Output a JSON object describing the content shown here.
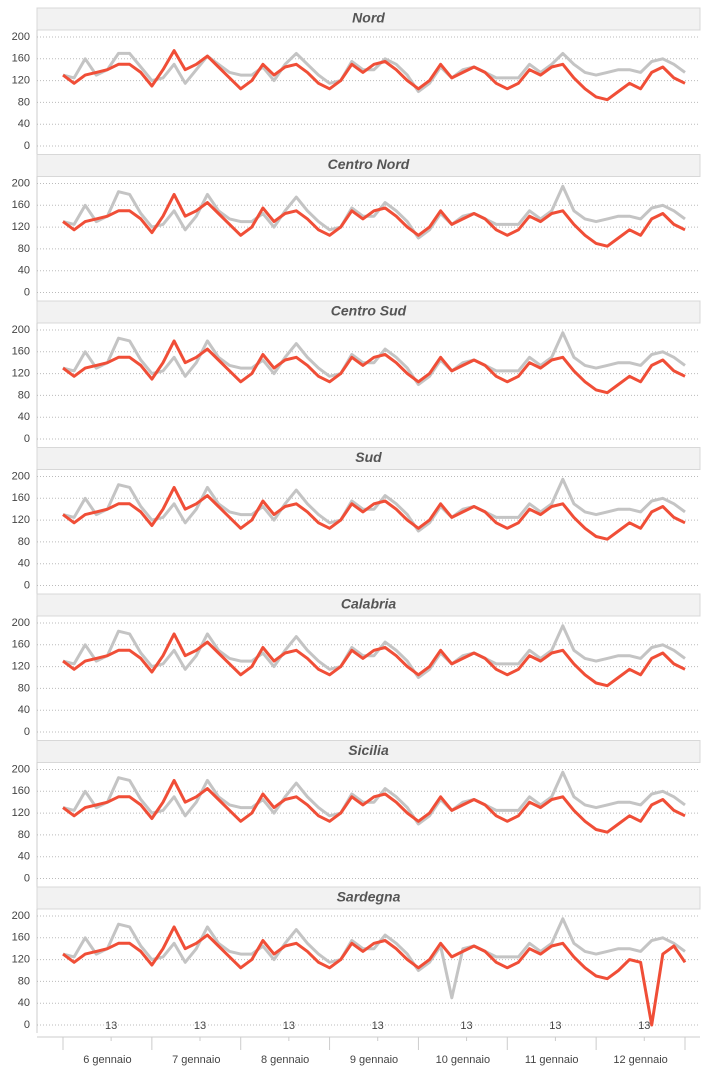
{
  "chart_data": [
    {
      "type": "line",
      "title": "Nord",
      "ylim": [
        0,
        200
      ],
      "yticks": [
        0,
        40,
        80,
        120,
        160,
        200
      ],
      "grid": true,
      "series": [
        {
          "color": "#c4c4c4",
          "values": [
            130,
            125,
            160,
            130,
            140,
            170,
            170,
            145,
            120,
            125,
            150,
            115,
            140,
            165,
            150,
            135,
            130,
            130,
            145,
            120,
            150,
            170,
            150,
            130,
            115,
            120,
            155,
            140,
            140,
            160,
            150,
            130,
            100,
            115,
            145,
            125,
            140,
            145,
            135,
            125,
            125,
            125,
            150,
            135,
            150,
            170,
            150,
            135,
            130,
            135,
            140,
            140,
            135,
            155,
            160,
            150,
            135
          ]
        },
        {
          "color": "#f04e37",
          "values": [
            130,
            115,
            130,
            135,
            140,
            150,
            150,
            135,
            110,
            140,
            175,
            140,
            150,
            165,
            145,
            125,
            105,
            120,
            150,
            130,
            145,
            150,
            135,
            115,
            105,
            120,
            150,
            135,
            150,
            155,
            140,
            120,
            105,
            120,
            150,
            125,
            135,
            145,
            135,
            115,
            105,
            115,
            140,
            130,
            145,
            150,
            125,
            105,
            90,
            85,
            100,
            115,
            105,
            135,
            145,
            125,
            115
          ]
        }
      ]
    },
    {
      "type": "line",
      "title": "Centro Nord",
      "ylim": [
        0,
        200
      ],
      "yticks": [
        0,
        40,
        80,
        120,
        160,
        200
      ],
      "grid": true,
      "series": [
        {
          "color": "#c4c4c4",
          "values": [
            130,
            125,
            160,
            130,
            140,
            185,
            180,
            145,
            120,
            125,
            150,
            115,
            140,
            180,
            150,
            135,
            130,
            130,
            145,
            120,
            150,
            175,
            150,
            130,
            115,
            120,
            155,
            140,
            140,
            165,
            150,
            130,
            100,
            115,
            145,
            125,
            140,
            145,
            135,
            125,
            125,
            125,
            150,
            135,
            150,
            195,
            150,
            135,
            130,
            135,
            140,
            140,
            135,
            155,
            160,
            150,
            135
          ]
        },
        {
          "color": "#f04e37",
          "values": [
            130,
            115,
            130,
            135,
            140,
            150,
            150,
            135,
            110,
            140,
            180,
            140,
            150,
            165,
            145,
            125,
            105,
            120,
            155,
            130,
            145,
            150,
            135,
            115,
            105,
            120,
            150,
            135,
            150,
            155,
            140,
            120,
            105,
            120,
            150,
            125,
            135,
            145,
            135,
            115,
            105,
            115,
            140,
            130,
            145,
            150,
            125,
            105,
            90,
            85,
            100,
            115,
            105,
            135,
            145,
            125,
            115
          ]
        }
      ]
    },
    {
      "type": "line",
      "title": "Centro Sud",
      "ylim": [
        0,
        200
      ],
      "yticks": [
        0,
        40,
        80,
        120,
        160,
        200
      ],
      "grid": true,
      "series": [
        {
          "color": "#c4c4c4",
          "values": [
            130,
            125,
            160,
            130,
            140,
            185,
            180,
            145,
            120,
            125,
            150,
            115,
            140,
            180,
            150,
            135,
            130,
            130,
            145,
            120,
            150,
            175,
            150,
            130,
            115,
            120,
            155,
            140,
            140,
            165,
            150,
            130,
            100,
            115,
            145,
            125,
            140,
            145,
            135,
            125,
            125,
            125,
            150,
            135,
            150,
            195,
            150,
            135,
            130,
            135,
            140,
            140,
            135,
            155,
            160,
            150,
            135
          ]
        },
        {
          "color": "#f04e37",
          "values": [
            130,
            115,
            130,
            135,
            140,
            150,
            150,
            135,
            110,
            140,
            180,
            140,
            150,
            165,
            145,
            125,
            105,
            120,
            155,
            130,
            145,
            150,
            135,
            115,
            105,
            120,
            150,
            135,
            150,
            155,
            140,
            120,
            105,
            120,
            150,
            125,
            135,
            145,
            135,
            115,
            105,
            115,
            140,
            130,
            145,
            150,
            125,
            105,
            90,
            85,
            100,
            115,
            105,
            135,
            145,
            125,
            115
          ]
        }
      ]
    },
    {
      "type": "line",
      "title": "Sud",
      "ylim": [
        0,
        200
      ],
      "yticks": [
        0,
        40,
        80,
        120,
        160,
        200
      ],
      "grid": true,
      "series": [
        {
          "color": "#c4c4c4",
          "values": [
            130,
            125,
            160,
            130,
            140,
            185,
            180,
            145,
            120,
            125,
            150,
            115,
            140,
            180,
            150,
            135,
            130,
            130,
            145,
            120,
            150,
            175,
            150,
            130,
            115,
            120,
            155,
            140,
            140,
            165,
            150,
            130,
            100,
            115,
            145,
            125,
            140,
            145,
            135,
            125,
            125,
            125,
            150,
            135,
            150,
            195,
            150,
            135,
            130,
            135,
            140,
            140,
            135,
            155,
            160,
            150,
            135
          ]
        },
        {
          "color": "#f04e37",
          "values": [
            130,
            115,
            130,
            135,
            140,
            150,
            150,
            135,
            110,
            140,
            180,
            140,
            150,
            165,
            145,
            125,
            105,
            120,
            155,
            130,
            145,
            150,
            135,
            115,
            105,
            120,
            150,
            135,
            150,
            155,
            140,
            120,
            105,
            120,
            150,
            125,
            135,
            145,
            135,
            115,
            105,
            115,
            140,
            130,
            145,
            150,
            125,
            105,
            90,
            85,
            100,
            115,
            105,
            135,
            145,
            125,
            115
          ]
        }
      ]
    },
    {
      "type": "line",
      "title": "Calabria",
      "ylim": [
        0,
        200
      ],
      "yticks": [
        0,
        40,
        80,
        120,
        160,
        200
      ],
      "grid": true,
      "series": [
        {
          "color": "#c4c4c4",
          "values": [
            130,
            125,
            160,
            130,
            140,
            185,
            180,
            145,
            120,
            125,
            150,
            115,
            140,
            180,
            150,
            135,
            130,
            130,
            145,
            120,
            150,
            175,
            150,
            130,
            115,
            120,
            155,
            140,
            140,
            165,
            150,
            130,
            100,
            115,
            145,
            125,
            140,
            145,
            135,
            125,
            125,
            125,
            150,
            135,
            150,
            195,
            150,
            135,
            130,
            135,
            140,
            140,
            135,
            155,
            160,
            150,
            135
          ]
        },
        {
          "color": "#f04e37",
          "values": [
            130,
            115,
            130,
            135,
            140,
            150,
            150,
            135,
            110,
            140,
            180,
            140,
            150,
            165,
            145,
            125,
            105,
            120,
            155,
            130,
            145,
            150,
            135,
            115,
            105,
            120,
            150,
            135,
            150,
            155,
            140,
            120,
            105,
            120,
            150,
            125,
            135,
            145,
            135,
            115,
            105,
            115,
            140,
            130,
            145,
            150,
            125,
            105,
            90,
            85,
            100,
            115,
            105,
            135,
            145,
            125,
            115
          ]
        }
      ]
    },
    {
      "type": "line",
      "title": "Sicilia",
      "ylim": [
        0,
        200
      ],
      "yticks": [
        0,
        40,
        80,
        120,
        160,
        200
      ],
      "grid": true,
      "series": [
        {
          "color": "#c4c4c4",
          "values": [
            130,
            125,
            160,
            130,
            140,
            185,
            180,
            145,
            120,
            125,
            150,
            115,
            140,
            180,
            150,
            135,
            130,
            130,
            145,
            120,
            150,
            175,
            150,
            130,
            115,
            120,
            155,
            140,
            140,
            165,
            150,
            130,
            100,
            115,
            145,
            125,
            140,
            145,
            135,
            125,
            125,
            125,
            150,
            135,
            150,
            195,
            150,
            135,
            130,
            135,
            140,
            140,
            135,
            155,
            160,
            150,
            135
          ]
        },
        {
          "color": "#f04e37",
          "values": [
            130,
            115,
            130,
            135,
            140,
            150,
            150,
            135,
            110,
            140,
            180,
            140,
            150,
            165,
            145,
            125,
            105,
            120,
            155,
            130,
            145,
            150,
            135,
            115,
            105,
            120,
            150,
            135,
            150,
            155,
            140,
            120,
            105,
            120,
            150,
            125,
            135,
            145,
            135,
            115,
            105,
            115,
            140,
            130,
            145,
            150,
            125,
            105,
            90,
            85,
            100,
            115,
            105,
            135,
            145,
            125,
            115
          ]
        }
      ]
    },
    {
      "type": "line",
      "title": "Sardegna",
      "ylim": [
        0,
        200
      ],
      "yticks": [
        0,
        40,
        80,
        120,
        160,
        200
      ],
      "grid": true,
      "series": [
        {
          "color": "#c4c4c4",
          "values": [
            130,
            125,
            160,
            130,
            140,
            185,
            180,
            145,
            120,
            125,
            150,
            115,
            140,
            180,
            150,
            135,
            130,
            130,
            145,
            120,
            150,
            175,
            150,
            130,
            115,
            120,
            155,
            140,
            140,
            165,
            150,
            130,
            100,
            115,
            145,
            50,
            140,
            145,
            135,
            125,
            125,
            125,
            150,
            135,
            150,
            195,
            150,
            135,
            130,
            135,
            140,
            140,
            135,
            155,
            160,
            150,
            135
          ]
        },
        {
          "color": "#f04e37",
          "values": [
            130,
            115,
            130,
            135,
            140,
            150,
            150,
            135,
            110,
            140,
            180,
            140,
            150,
            165,
            145,
            125,
            105,
            120,
            155,
            130,
            145,
            150,
            135,
            115,
            105,
            120,
            150,
            135,
            150,
            155,
            140,
            120,
            105,
            120,
            150,
            125,
            135,
            145,
            135,
            115,
            105,
            115,
            140,
            130,
            145,
            150,
            125,
            105,
            90,
            85,
            100,
            120,
            115,
            0,
            130,
            145,
            115
          ]
        }
      ]
    }
  ],
  "x_axis": {
    "categories": [
      "6 gennaio",
      "7 gennaio",
      "8 gennaio",
      "9 gennaio",
      "10 gennaio",
      "11 gennaio",
      "12 gennaio"
    ],
    "hour_labels": [
      "13",
      "13",
      "13",
      "13",
      "13",
      "13",
      "13"
    ]
  }
}
